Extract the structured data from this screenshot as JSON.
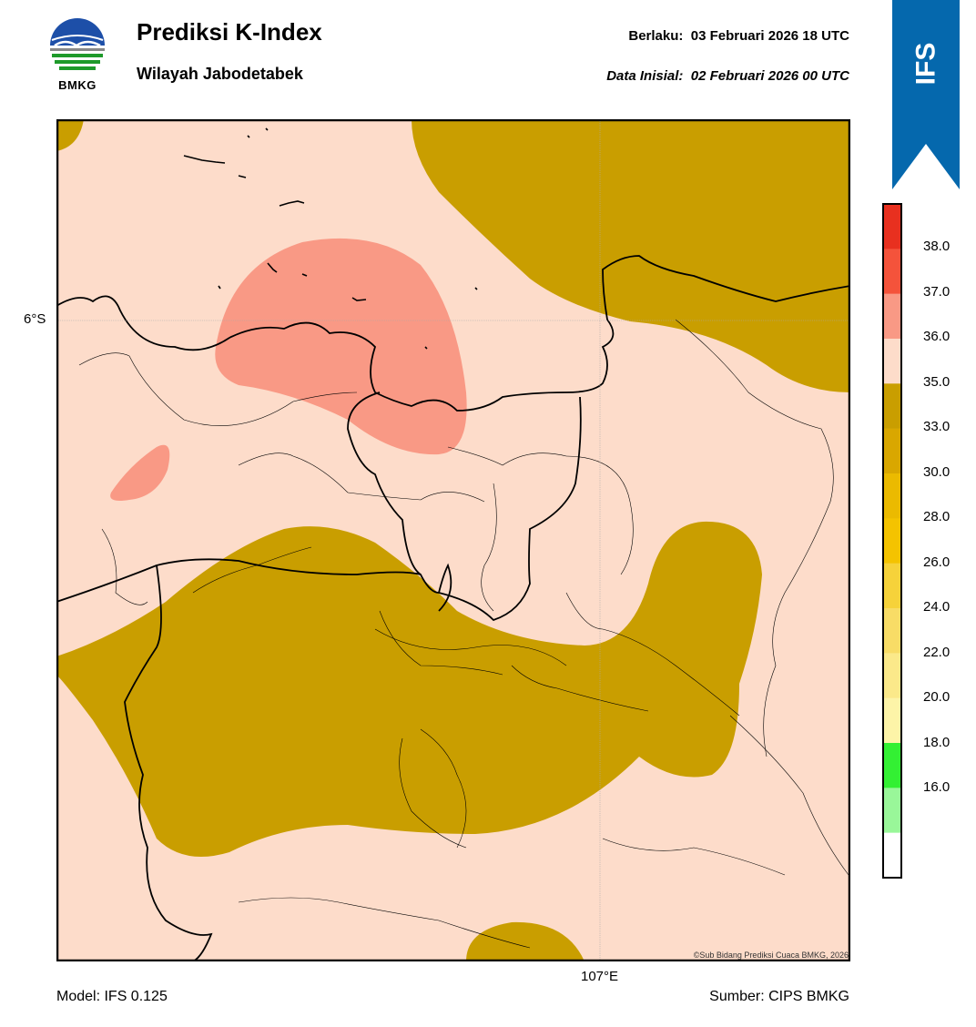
{
  "header": {
    "logo_text": "BMKG",
    "title": "Prediksi K-Index",
    "subtitle": "Wilayah Jabodetabek",
    "valid_label": "Berlaku:",
    "valid_time": "03 Februari 2026 18 UTC",
    "init_label": "Data Inisial:",
    "init_time": "02 Februari 2026 00 UTC",
    "ribbon_text": "IFS"
  },
  "map": {
    "lat_label": "6°S",
    "lon_label": "107°E",
    "copyright": "©Sub Bidang Prediksi Cuaca BMKG, 2026",
    "colors": {
      "background": "#fddcca",
      "olive": "#c99e00",
      "salmon": "#f99985",
      "outline": "#000000"
    }
  },
  "colorbar": {
    "labels": [
      "38.0",
      "37.0",
      "36.0",
      "35.0",
      "33.0",
      "30.0",
      "28.0",
      "26.0",
      "24.0",
      "22.0",
      "20.0",
      "18.0",
      "16.0"
    ],
    "colors_top_to_bottom": [
      "#e8301f",
      "#f4533b",
      "#f99985",
      "#fddcca",
      "#c99e00",
      "#d9a700",
      "#ebba00",
      "#f4c300",
      "#f6d23a",
      "#f8dc66",
      "#fbe98a",
      "#fdf4a8",
      "#33f033",
      "#99f799",
      "#ffffff"
    ]
  },
  "footer": {
    "model": "Model: IFS 0.125",
    "source": "Sumber: CIPS BMKG"
  }
}
